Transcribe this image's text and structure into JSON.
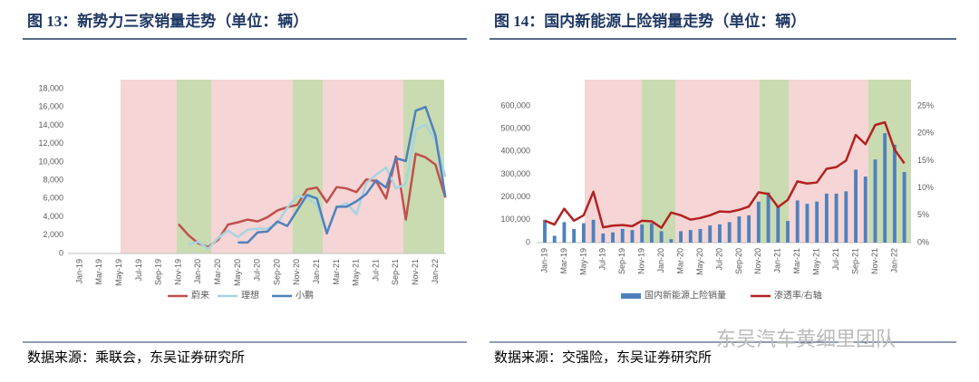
{
  "chart_data": [
    {
      "type": "line",
      "title": "图 13：新势力三家销量走势（单位：辆）",
      "source": "数据来源：乘联会，东吴证券研究所",
      "categories": [
        "Jan-19",
        null,
        "Mar-19",
        null,
        "May-19",
        null,
        "Jul-19",
        null,
        "Sep-19",
        null,
        "Nov-19",
        null,
        "Jan-20",
        null,
        "Mar-20",
        null,
        "May-20",
        null,
        "Jul-20",
        null,
        "Sep-20",
        null,
        "Nov-20",
        null,
        "Jan-21",
        null,
        "Mar-21",
        null,
        "May-21",
        null,
        "Jul-21",
        null,
        "Sep-21",
        null,
        "Nov-21",
        null,
        "Jan-22",
        null
      ],
      "ylim": [
        0,
        18000
      ],
      "yticks": [
        0,
        {
          "value": 2000,
          "label": "2,000"
        },
        {
          "value": 4000,
          "label": "4,000"
        },
        {
          "value": 6000,
          "label": "6,000"
        },
        {
          "value": 8000,
          "label": "8,000"
        },
        {
          "value": 10000,
          "label": "10,000"
        },
        {
          "value": 12000,
          "label": "12,000"
        },
        {
          "value": 14000,
          "label": "14,000"
        },
        {
          "value": 16000,
          "label": "16,000"
        },
        {
          "value": 18000,
          "label": "18,000"
        }
      ],
      "series": [
        {
          "name": "蔚来",
          "color": "#c0504d",
          "values": [
            null,
            null,
            null,
            null,
            null,
            null,
            null,
            null,
            null,
            null,
            3200,
            2000,
            1100,
            700,
            1500,
            3150,
            3400,
            3700,
            3500,
            3960,
            4700,
            5050,
            5300,
            7000,
            7200,
            5600,
            7250,
            7100,
            6700,
            8100,
            7900,
            6000,
            10600,
            3700,
            10900,
            10500,
            9700,
            6100
          ]
        },
        {
          "name": "理想",
          "color": "#a6d4e0",
          "values": [
            null,
            null,
            null,
            null,
            null,
            null,
            null,
            null,
            null,
            null,
            null,
            1000,
            1280,
            500,
            1700,
            2500,
            1800,
            2600,
            2700,
            2700,
            3300,
            5000,
            6300,
            6100,
            5300,
            2300,
            5000,
            5500,
            4300,
            7700,
            8600,
            9400,
            7100,
            7600,
            13500,
            14100,
            12300,
            8400
          ]
        },
        {
          "name": "小鹏",
          "color": "#4f81bd",
          "values": [
            null,
            null,
            null,
            null,
            null,
            null,
            null,
            null,
            null,
            null,
            null,
            null,
            null,
            null,
            null,
            null,
            1200,
            1200,
            2300,
            2400,
            3500,
            3000,
            4700,
            6400,
            6000,
            2200,
            5100,
            5100,
            5700,
            6500,
            8000,
            7200,
            10400,
            10100,
            15600,
            16000,
            12900,
            6200
          ]
        }
      ]
    },
    {
      "type": "combo",
      "title": "图 14：国内新能源上险销量走势（单位：辆）",
      "source": "数据来源：交强险，东吴证券研究所",
      "categories": [
        "Jan-19",
        null,
        "Mar-19",
        null,
        "May-19",
        null,
        "Jul-19",
        null,
        "Sep-19",
        null,
        "Nov-19",
        null,
        "Jan-20",
        null,
        "Mar-20",
        null,
        "May-20",
        null,
        "Jul-20",
        null,
        "Sep-20",
        null,
        "Nov-20",
        null,
        "Jan-21",
        null,
        "Mar-21",
        null,
        "May-21",
        null,
        "Jul-21",
        null,
        "Sep-21",
        null,
        "Nov-21",
        null,
        "Jan-22",
        null
      ],
      "ylim": [
        0,
        600000
      ],
      "yticks": [
        0,
        {
          "value": 100000,
          "label": "100,000"
        },
        {
          "value": 200000,
          "label": "200,000"
        },
        {
          "value": 300000,
          "label": "300,000"
        },
        {
          "value": 400000,
          "label": "400,000"
        },
        {
          "value": 500000,
          "label": "500,000"
        },
        {
          "value": 600000,
          "label": "600,000"
        }
      ],
      "y2lim": [
        0,
        25
      ],
      "y2ticks": [
        {
          "value": 0,
          "label": "0%"
        },
        {
          "value": 5,
          "label": "5%"
        },
        {
          "value": 10,
          "label": "10%"
        },
        {
          "value": 15,
          "label": "15%"
        },
        {
          "value": 20,
          "label": "20%"
        },
        {
          "value": 25,
          "label": "25%"
        }
      ],
      "series": [
        {
          "name": "国内新能源上险销量",
          "type": "bar",
          "color": "#4f81bd",
          "values": [
            100000,
            30000,
            90000,
            60000,
            85000,
            100000,
            40000,
            45000,
            60000,
            55000,
            80000,
            85000,
            50000,
            15000,
            50000,
            55000,
            60000,
            75000,
            80000,
            90000,
            115000,
            120000,
            180000,
            220000,
            160000,
            95000,
            185000,
            170000,
            180000,
            215000,
            215000,
            225000,
            320000,
            290000,
            365000,
            480000,
            430000,
            310000
          ]
        },
        {
          "name": "渗透率/右轴",
          "type": "line",
          "axis": "y2",
          "color": "#b22222",
          "values": [
            4,
            3.3,
            6.2,
            4,
            5,
            9.3,
            2.8,
            3.1,
            3.2,
            3,
            4,
            3.9,
            2.7,
            5.5,
            5,
            4.2,
            4.5,
            5,
            5.7,
            5.6,
            6,
            6.6,
            9.2,
            8.9,
            6.5,
            7.8,
            11.2,
            10.8,
            11,
            13.5,
            13.8,
            15,
            19.7,
            18,
            21.5,
            22,
            17,
            14.5
          ]
        }
      ]
    }
  ],
  "watermark": "东吴汽车黄细里团队"
}
